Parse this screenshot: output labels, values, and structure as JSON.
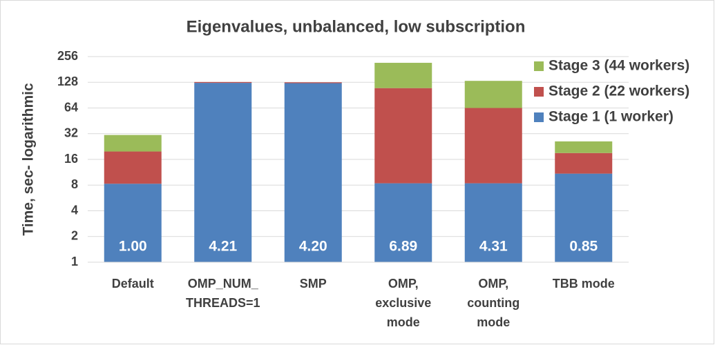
{
  "chart_data": {
    "type": "stacked-bar",
    "title": "Eigenvalues, unbalanced, low subscription",
    "y_label": "Time, sec- logarithmic",
    "categories": [
      "Default",
      "OMP_NUM_\nTHREADS=1",
      "SMP",
      "OMP,\nexclusive\nmode",
      "OMP,\ncounting\nmode",
      "TBB mode"
    ],
    "series": [
      {
        "name": "Stage 1 (1 worker)",
        "color": "#4f81bd",
        "values": [
          8.3,
          126,
          125,
          8.4,
          8.4,
          10.9
        ]
      },
      {
        "name": "Stage 2 (22 workers)",
        "color": "#c0504d",
        "values": [
          11.5,
          3,
          3,
          101,
          55.6,
          8.1
        ]
      },
      {
        "name": "Stage 3 (44 workers)",
        "color": "#9bbb59",
        "values": [
          11.1,
          0,
          0,
          107,
          69,
          7
        ]
      }
    ],
    "bar_labels": [
      "1.00",
      "4.21",
      "4.20",
      "6.89",
      "4.31",
      "0.85"
    ],
    "ylim": [
      1,
      256
    ],
    "yticks": [
      1,
      2,
      4,
      8,
      16,
      32,
      64,
      128,
      256
    ],
    "log_scale": true,
    "grid": true,
    "legend": "top-right"
  }
}
